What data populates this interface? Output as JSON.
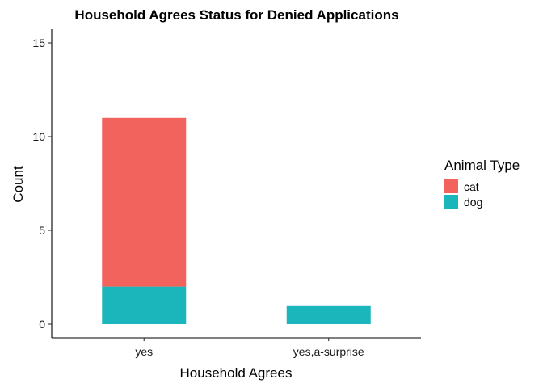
{
  "chart_data": {
    "type": "bar",
    "stacked": true,
    "title": "Household Agrees Status for Denied Applications",
    "xlabel": "Household Agrees",
    "ylabel": "Count",
    "categories": [
      "yes",
      "yes,a-surprise"
    ],
    "ylim": [
      0,
      15.5
    ],
    "yticks": [
      0,
      5,
      10,
      15
    ],
    "grid": false,
    "legend": {
      "title": "Animal Type",
      "placement": "right"
    },
    "series": [
      {
        "name": "dog",
        "values": [
          2,
          1
        ],
        "color": "#1BB6BB"
      },
      {
        "name": "cat",
        "values": [
          9,
          0
        ],
        "color": "#F3635E"
      }
    ],
    "legend_order": [
      "cat",
      "dog"
    ]
  }
}
